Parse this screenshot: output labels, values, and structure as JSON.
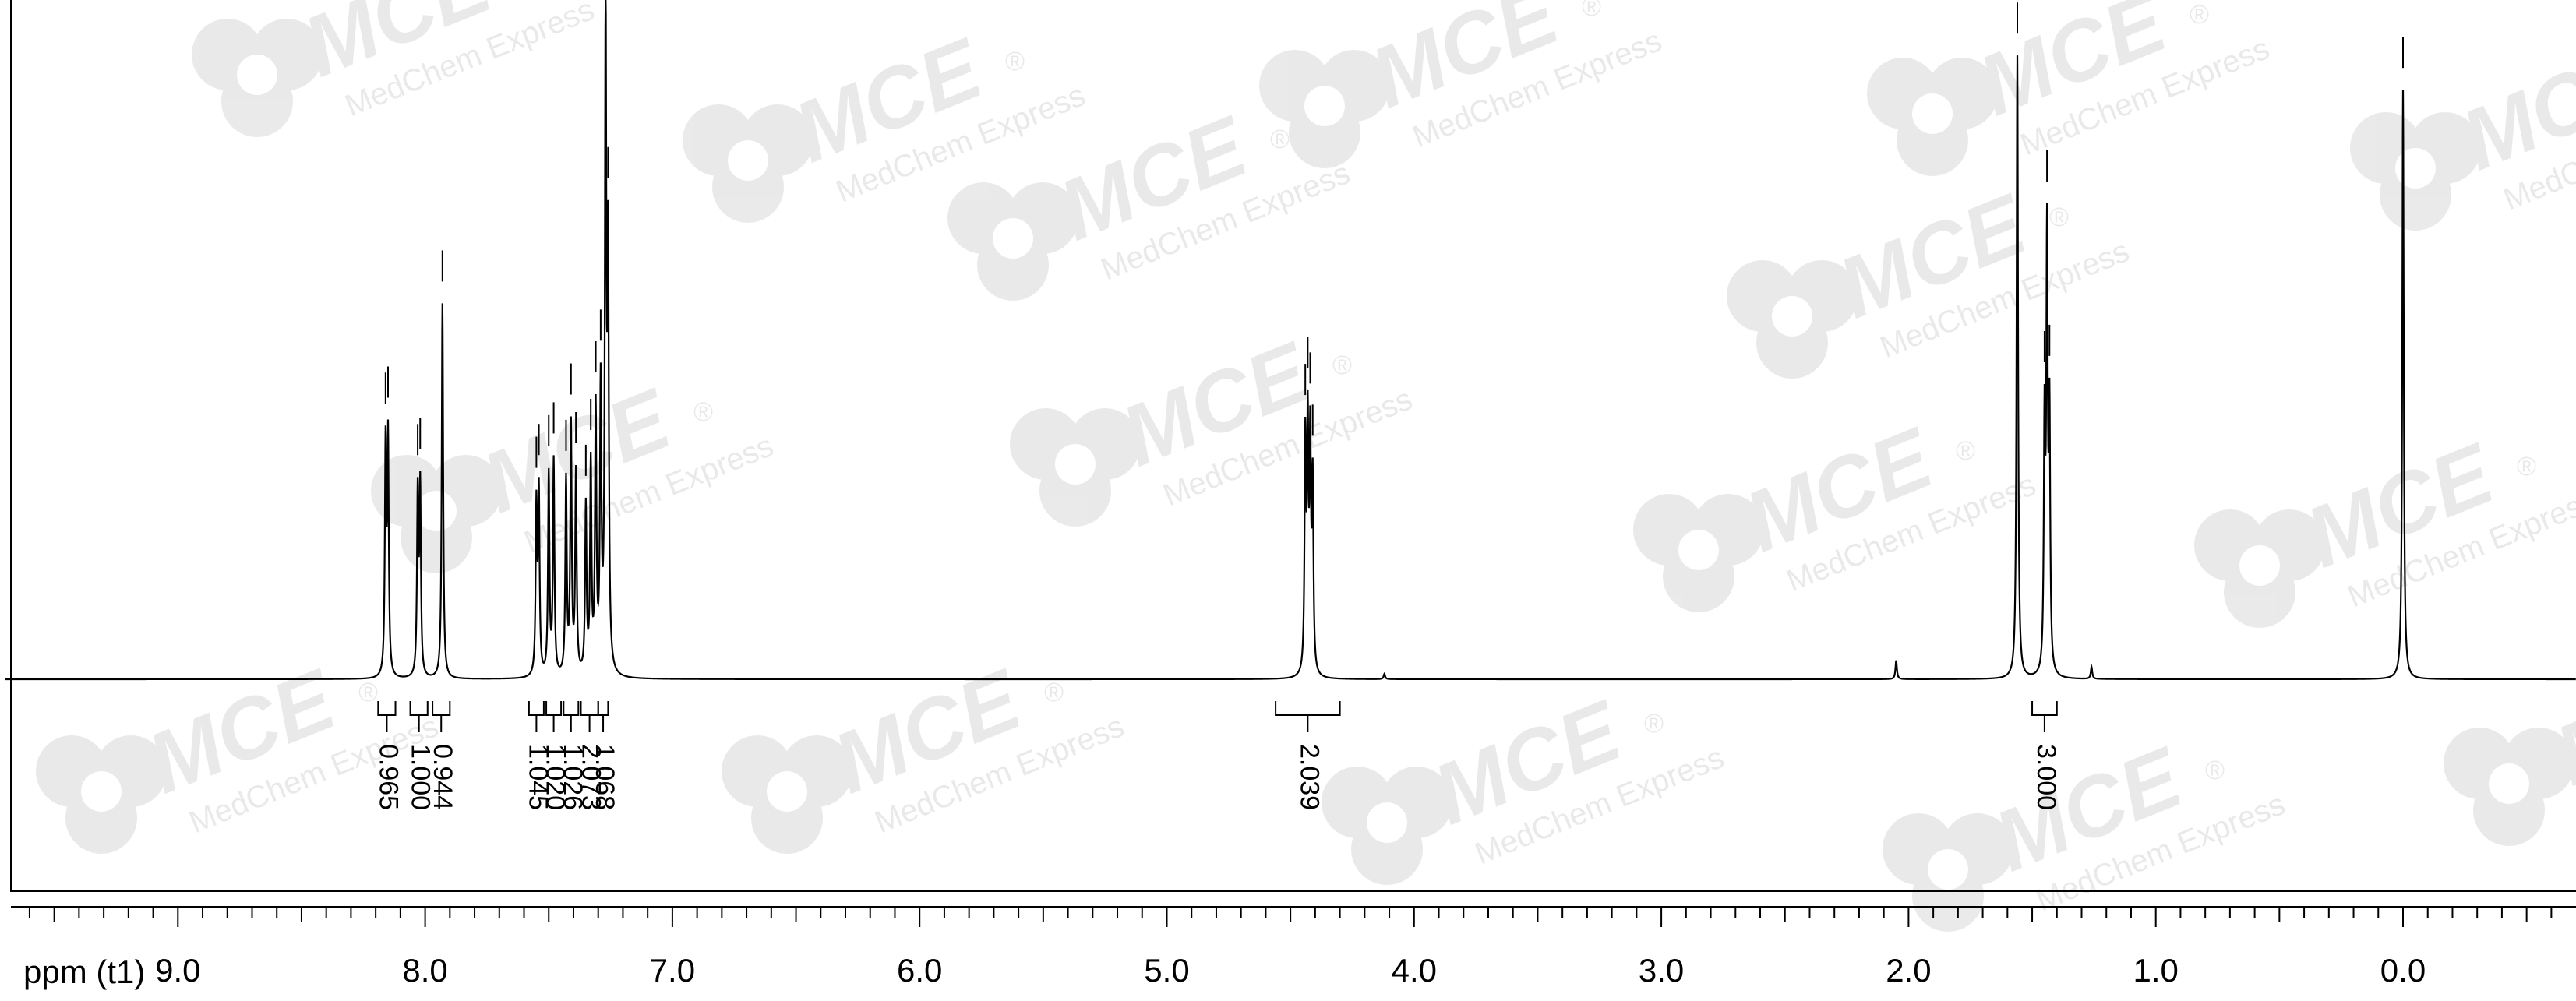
{
  "chart_data": {
    "type": "line",
    "subtype": "1H NMR spectrum",
    "x_axis": {
      "label": "ppm (t1)",
      "reversed": true,
      "range": [
        9.7,
        -0.7
      ],
      "major_ticks": [
        9.0,
        8.0,
        7.0,
        6.0,
        5.0,
        4.0,
        3.0,
        2.0,
        1.0,
        0.0
      ],
      "tick_labels": [
        "9.0",
        "8.0",
        "7.0",
        "6.0",
        "5.0",
        "4.0",
        "3.0",
        "2.0",
        "1.0",
        "0.0"
      ],
      "minor_tick_step": 0.1
    },
    "y_axis": {
      "label": "",
      "range": [
        0,
        1.0
      ]
    },
    "grid": false,
    "peaks": [
      {
        "ppm": 8.16,
        "height": 0.34
      },
      {
        "ppm": 8.15,
        "height": 0.35
      },
      {
        "ppm": 8.03,
        "height": 0.27
      },
      {
        "ppm": 8.02,
        "height": 0.28
      },
      {
        "ppm": 7.93,
        "height": 0.56
      },
      {
        "ppm": 7.55,
        "height": 0.25
      },
      {
        "ppm": 7.54,
        "height": 0.27
      },
      {
        "ppm": 7.5,
        "height": 0.3
      },
      {
        "ppm": 7.48,
        "height": 0.32
      },
      {
        "ppm": 7.43,
        "height": 0.29
      },
      {
        "ppm": 7.41,
        "height": 0.37
      },
      {
        "ppm": 7.39,
        "height": 0.3
      },
      {
        "ppm": 7.35,
        "height": 0.25
      },
      {
        "ppm": 7.33,
        "height": 0.31
      },
      {
        "ppm": 7.31,
        "height": 0.39
      },
      {
        "ppm": 7.29,
        "height": 0.42
      },
      {
        "ppm": 7.27,
        "height": 0.97
      },
      {
        "ppm": 7.26,
        "height": 0.6
      },
      {
        "ppm": 4.44,
        "height": 0.34
      },
      {
        "ppm": 4.43,
        "height": 0.35
      },
      {
        "ppm": 4.42,
        "height": 0.33
      },
      {
        "ppm": 4.41,
        "height": 0.28
      },
      {
        "ppm": 4.12,
        "height": 0.008
      },
      {
        "ppm": 2.05,
        "height": 0.028
      },
      {
        "ppm": 1.56,
        "height": 0.93
      },
      {
        "ppm": 1.45,
        "height": 0.36
      },
      {
        "ppm": 1.44,
        "height": 0.63
      },
      {
        "ppm": 1.43,
        "height": 0.37
      },
      {
        "ppm": 1.26,
        "height": 0.018
      },
      {
        "ppm": 0.0,
        "height": 0.88
      }
    ],
    "peak_picks_ppm": [
      8.16,
      8.15,
      8.03,
      8.02,
      7.93,
      7.55,
      7.54,
      7.5,
      7.48,
      7.43,
      7.41,
      7.39,
      7.35,
      7.33,
      7.31,
      7.29,
      7.27,
      7.26,
      4.44,
      4.43,
      4.42,
      4.41,
      1.56,
      1.45,
      1.44,
      1.43,
      0.0
    ],
    "integrals": [
      {
        "from": 8.19,
        "to": 8.12,
        "label": "0.965"
      },
      {
        "from": 8.06,
        "to": 7.99,
        "label": "1.000"
      },
      {
        "from": 7.97,
        "to": 7.9,
        "label": "0.944"
      },
      {
        "from": 7.58,
        "to": 7.52,
        "label": "1.045"
      },
      {
        "from": 7.51,
        "to": 7.45,
        "label": "1.020"
      },
      {
        "from": 7.44,
        "to": 7.38,
        "label": "1.026"
      },
      {
        "from": 7.37,
        "to": 7.3,
        "label": "2.073"
      },
      {
        "from": 7.3,
        "to": 7.26,
        "label": "1.068"
      },
      {
        "from": 4.56,
        "to": 4.3,
        "label": "2.039"
      },
      {
        "from": 1.5,
        "to": 1.4,
        "label": "3.000"
      }
    ]
  },
  "watermark": {
    "logo_text": "MCE",
    "sub_text": "MedChem Express",
    "registered": "®"
  },
  "colors": {
    "trace": "#000000",
    "background": "#ffffff",
    "watermark": "#d8d8d8"
  }
}
